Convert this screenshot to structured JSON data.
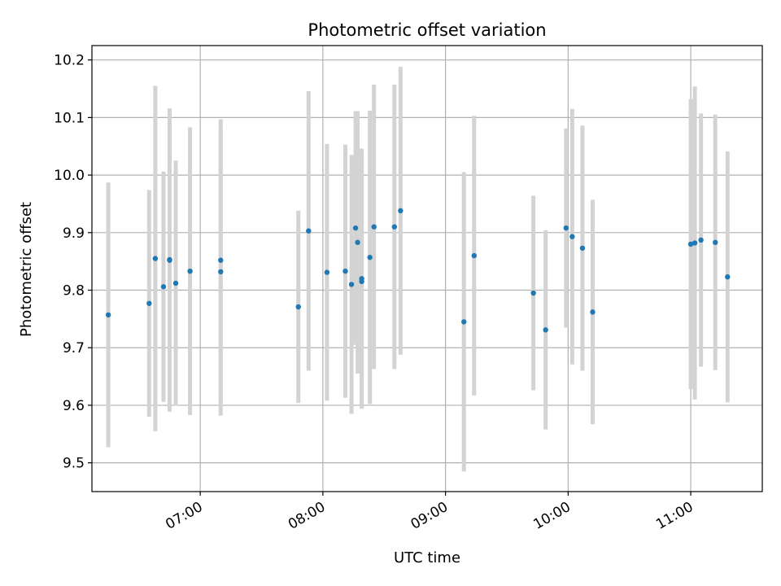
{
  "chart_data": {
    "type": "scatter",
    "title": "Photometric offset variation",
    "xlabel": "UTC time",
    "ylabel": "Photometric offset",
    "grid": true,
    "xlim": [
      "06:07",
      "11:35"
    ],
    "ylim": [
      9.45,
      10.225
    ],
    "x_ticks": [
      "07:00",
      "08:00",
      "09:00",
      "10:00",
      "11:00"
    ],
    "y_ticks": [
      9.5,
      9.6,
      9.7,
      9.8,
      9.9,
      10.0,
      10.1,
      10.2
    ],
    "colors": {
      "points": "#1f77b4",
      "error_bars": "#d3d3d3",
      "grid": "#b0b0b0"
    },
    "series": [
      {
        "x": [
          "06:15",
          "06:35",
          "06:38",
          "06:42",
          "06:45",
          "06:45",
          "06:48",
          "06:55",
          "07:10",
          "07:10",
          "07:48",
          "07:53",
          "08:02",
          "08:11",
          "08:14",
          "08:16",
          "08:17",
          "08:19",
          "08:19",
          "08:23",
          "08:25",
          "08:35",
          "08:38",
          "09:09",
          "09:14",
          "09:43",
          "09:49",
          "09:59",
          "10:02",
          "10:07",
          "10:12",
          "11:00",
          "11:02",
          "11:05",
          "11:12",
          "11:18"
        ],
        "y": [
          9.757,
          9.777,
          9.855,
          9.806,
          9.852,
          9.853,
          9.812,
          9.833,
          9.852,
          9.832,
          9.771,
          9.903,
          9.831,
          9.833,
          9.81,
          9.908,
          9.883,
          9.82,
          9.815,
          9.857,
          9.91,
          9.91,
          9.938,
          9.745,
          9.86,
          9.795,
          9.731,
          9.908,
          9.893,
          9.873,
          9.762,
          9.88,
          9.882,
          9.887,
          9.883,
          9.823
        ],
        "yerr": [
          0.23,
          0.197,
          0.3,
          0.2,
          0.263,
          0.263,
          0.213,
          0.25,
          0.245,
          0.25,
          0.167,
          0.243,
          0.223,
          0.22,
          0.225,
          0.203,
          0.228,
          0.226,
          0.221,
          0.255,
          0.247,
          0.247,
          0.25,
          0.26,
          0.243,
          0.169,
          0.173,
          0.173,
          0.222,
          0.213,
          0.195,
          0.252,
          0.272,
          0.22,
          0.222,
          0.218
        ]
      }
    ]
  }
}
